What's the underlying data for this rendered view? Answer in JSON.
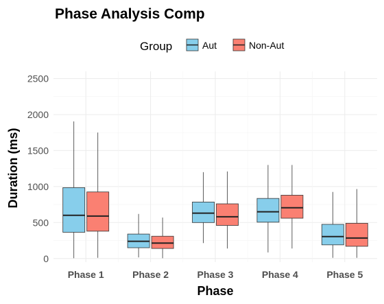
{
  "chart_data": {
    "type": "boxplot",
    "title": "Phase Analysis Comp",
    "xlabel": "Phase",
    "ylabel": "Duration (ms)",
    "ylim": [
      -50,
      2600
    ],
    "yticks": [
      0,
      500,
      1000,
      1500,
      2000,
      2500
    ],
    "legend": {
      "title": "Group",
      "position": "top"
    },
    "categories": [
      "Phase 1",
      "Phase 2",
      "Phase 3",
      "Phase 4",
      "Phase 5"
    ],
    "series": [
      {
        "name": "Aut",
        "color": "#87CEEB",
        "boxes": [
          {
            "min": 5,
            "q1": 365,
            "median": 600,
            "q3": 985,
            "max": 1905
          },
          {
            "min": 15,
            "q1": 150,
            "median": 240,
            "q3": 340,
            "max": 620
          },
          {
            "min": 215,
            "q1": 500,
            "median": 630,
            "q3": 785,
            "max": 1200
          },
          {
            "min": 85,
            "q1": 505,
            "median": 650,
            "q3": 835,
            "max": 1300
          },
          {
            "min": 10,
            "q1": 190,
            "median": 305,
            "q3": 475,
            "max": 925
          }
        ]
      },
      {
        "name": "Non-Aut",
        "color": "#FA8072",
        "boxes": [
          {
            "min": 10,
            "q1": 380,
            "median": 590,
            "q3": 925,
            "max": 1750
          },
          {
            "min": 5,
            "q1": 140,
            "median": 215,
            "q3": 310,
            "max": 570
          },
          {
            "min": 140,
            "q1": 460,
            "median": 580,
            "q3": 760,
            "max": 1210
          },
          {
            "min": 140,
            "q1": 560,
            "median": 705,
            "q3": 880,
            "max": 1300
          },
          {
            "min": 10,
            "q1": 170,
            "median": 285,
            "q3": 490,
            "max": 965
          }
        ]
      }
    ]
  }
}
